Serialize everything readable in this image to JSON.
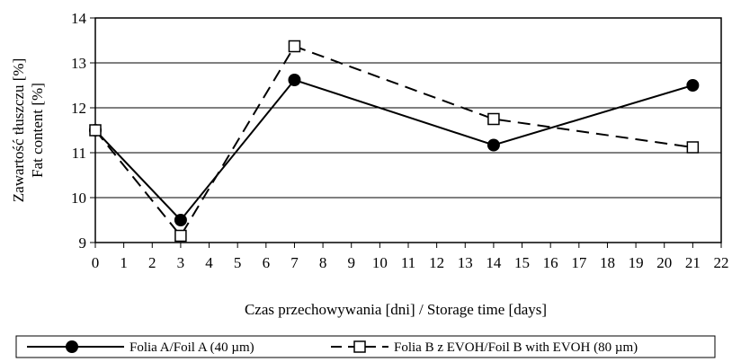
{
  "chart_data": {
    "type": "line",
    "title": "",
    "xlabel": "Czas przechowywania [dni] / Storage time [days]",
    "ylabel_lines": [
      "Zawartość tłuszczu [%]",
      "Fat content [%]"
    ],
    "xlim": [
      0,
      22
    ],
    "ylim": [
      9,
      14
    ],
    "xticks": [
      0,
      1,
      2,
      3,
      4,
      5,
      6,
      7,
      8,
      9,
      10,
      11,
      12,
      13,
      14,
      15,
      16,
      17,
      18,
      19,
      20,
      21,
      22
    ],
    "yticks": [
      9,
      10,
      11,
      12,
      13,
      14
    ],
    "grid": "horizontal",
    "legend_position": "bottom",
    "series": [
      {
        "name": "Folia A/Foil A (40 µm)",
        "x": [
          0,
          3,
          7,
          14,
          21
        ],
        "y": [
          11.5,
          9.5,
          12.62,
          11.17,
          12.5
        ],
        "line_style": "solid",
        "marker": "filled-circle",
        "color": "#000000"
      },
      {
        "name": "Folia B z EVOH/Foil B with EVOH (80 µm)",
        "x": [
          0,
          3,
          7,
          14,
          21
        ],
        "y": [
          11.5,
          9.15,
          13.37,
          11.75,
          11.12
        ],
        "line_style": "dashed",
        "marker": "open-square",
        "color": "#000000"
      }
    ]
  }
}
